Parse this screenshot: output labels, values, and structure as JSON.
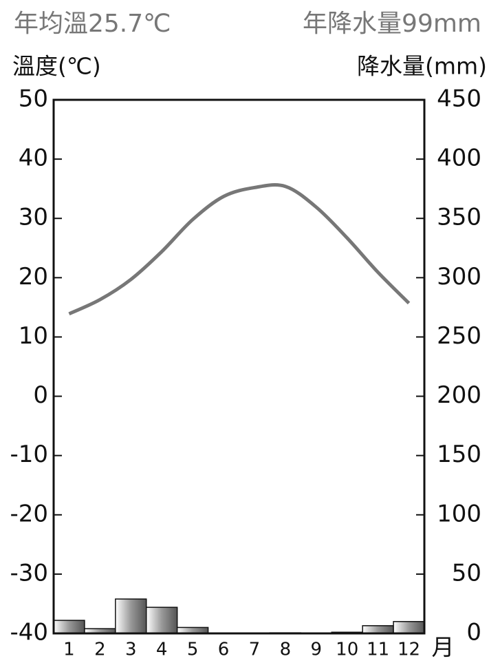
{
  "chart_data": {
    "type": "climate",
    "title": "年均溫25.7℃",
    "subtitle": "年降水量99mm",
    "y_label": "溫度(℃)",
    "y2_label": "降水量(mm)",
    "x_label": "月",
    "categories": [
      "1",
      "2",
      "3",
      "4",
      "5",
      "6",
      "7",
      "8",
      "9",
      "10",
      "11",
      "12"
    ],
    "series": [
      {
        "type": "line",
        "color": "#777777",
        "values": [
          13.9,
          16.3,
          19.7,
          24.4,
          29.8,
          33.7,
          35.2,
          35.4,
          31.9,
          26.7,
          20.9,
          15.7
        ]
      },
      {
        "type": "bar",
        "axis": "y2",
        "color": "#999999",
        "values": [
          11,
          4,
          29,
          22,
          5,
          0,
          0,
          0.5,
          0,
          1,
          6.5,
          10
        ]
      }
    ],
    "ylim": [
      -40,
      50
    ],
    "yticks": [
      -40,
      -30,
      -20,
      -10,
      0,
      10,
      20,
      30,
      40,
      50
    ],
    "y2lim": [
      0,
      450
    ],
    "y2ticks": [
      0,
      50,
      100,
      150,
      200,
      250,
      300,
      350,
      400,
      450
    ]
  }
}
